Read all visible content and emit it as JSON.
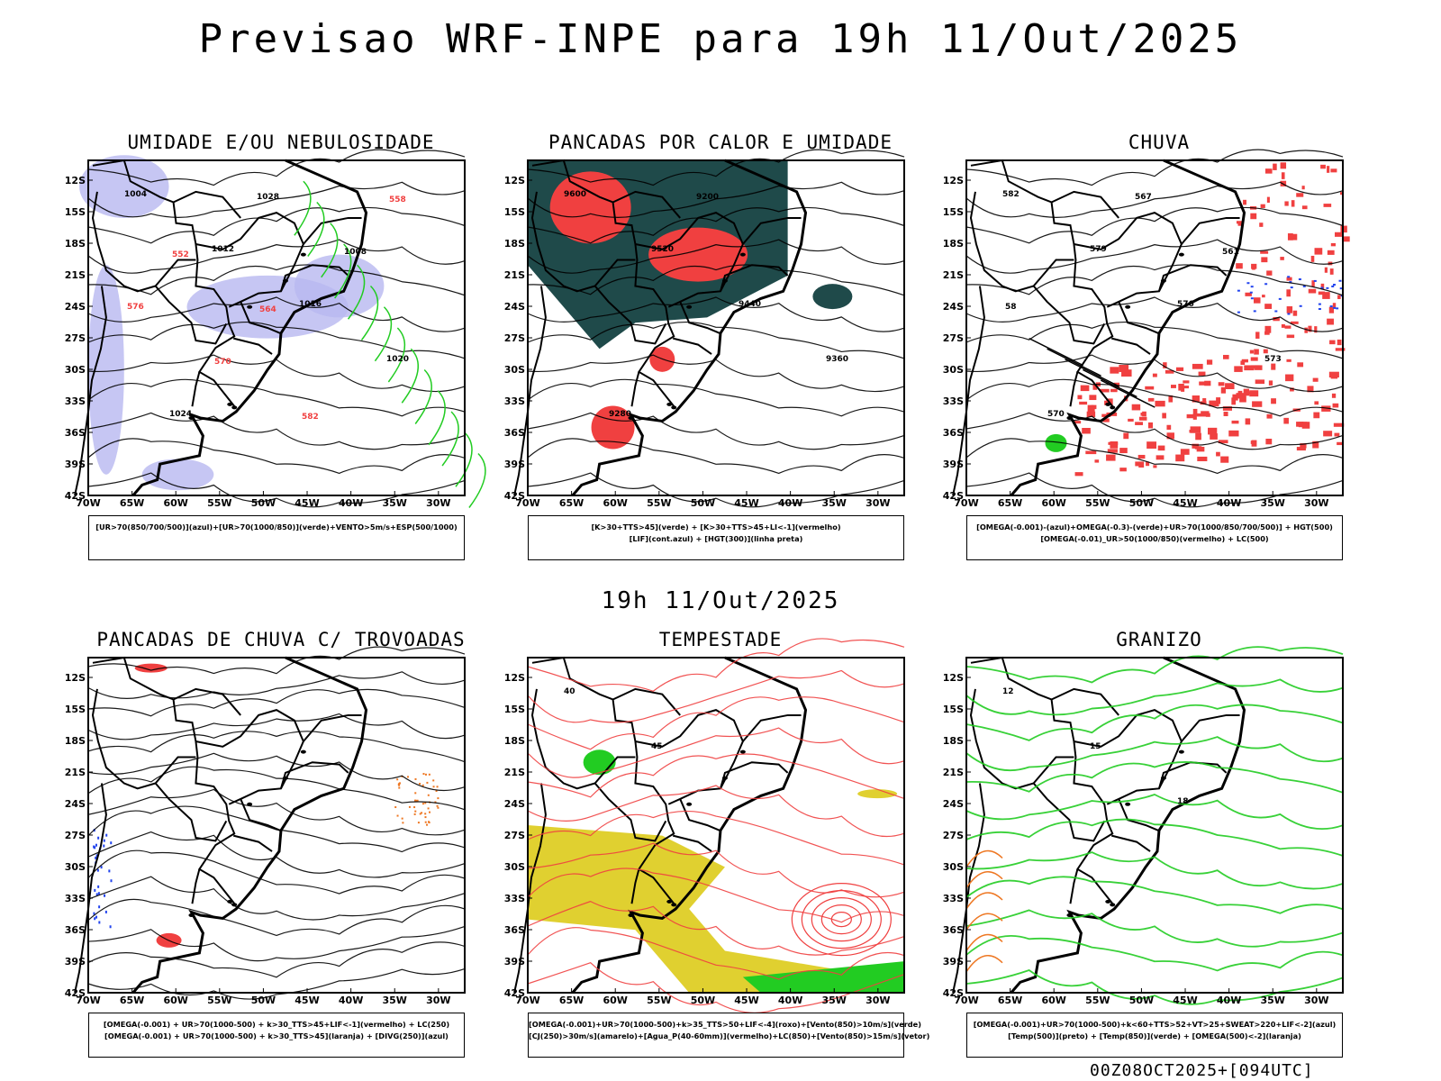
{
  "title": "Previsao WRF-INPE  para 19h 11/Out/2025",
  "subtitle": "19h 11/Out/2025",
  "run_info": "00Z08OCT2025+[094UTC]",
  "lat_labels": [
    "12S",
    "15S",
    "18S",
    "21S",
    "24S",
    "27S",
    "30S",
    "33S",
    "36S",
    "39S",
    "42S"
  ],
  "lon_labels": [
    "70W",
    "65W",
    "60W",
    "55W",
    "50W",
    "45W",
    "40W",
    "35W",
    "30W"
  ],
  "panels": [
    {
      "title": "UMIDADE E/OU NEBULOSIDADE",
      "legend": [
        "[UR>70(850/700/500)](azul)+[UR>70(1000/850)](verde)+VENTO>5m/s+ESP(500/1000)"
      ]
    },
    {
      "title": "PANCADAS POR CALOR E UMIDADE",
      "legend": [
        "[K>30+TTS>45](verde) + [K>30+TTS>45+LI<-1](vermelho)",
        "[LIF](cont.azul) + [HGT(300)](linha preta)"
      ]
    },
    {
      "title": "CHUVA",
      "legend": [
        "[OMEGA(-0.001)-(azul)+OMEGA(-0.3)-(verde)+UR>70(1000/850/700/500)] + HGT(500)",
        "[OMEGA(-0.01)_UR>50(1000/850)(vermelho) + LC(500)"
      ]
    },
    {
      "title": "PANCADAS DE CHUVA C/ TROVOADAS",
      "legend": [
        "[OMEGA(-0.001) + UR>70(1000-500) + k>30_TTS>45+LIF<-1](vermelho) + LC(250)",
        "[OMEGA(-0.001) + UR>70(1000-500) + k>30_TTS>45](laranja) + [DIVG(250)](azul)"
      ]
    },
    {
      "title": "TEMPESTADE",
      "legend": [
        "[OMEGA(-0.001)+UR>70(1000-500)+k>35_TTS>50+LIF<-4](roxo)+[Vento(850)>10m/s](verde)",
        "[CJ(250)>30m/s](amarelo)+[Agua_P(40-60mm)](vermelho)+LC(850)+[Vento(850)>15m/s](vetor)"
      ]
    },
    {
      "title": "GRANIZO",
      "legend": [
        "[OMEGA(-0.001)+UR>70(1000-500)+k<60+TTS>52+VT>25+SWEAT>220+LIF<-2](azul)",
        "[Temp(500)](preto) + [Temp(850)](verde) + [OMEGA(500)<-2](laranja)"
      ]
    }
  ],
  "contour_labels": {
    "p1": [
      "1004",
      "1012",
      "1016",
      "1020",
      "1024",
      "1028",
      "1008",
      "576",
      "570",
      "582",
      "558",
      "552",
      "564"
    ],
    "p2": [
      "9600",
      "9520",
      "9440",
      "9360",
      "9280",
      "9200"
    ],
    "p3": [
      "582",
      "579",
      "576",
      "573",
      "570",
      "567",
      "561",
      "58"
    ],
    "p5": [
      "40",
      "45"
    ],
    "p6": [
      "12",
      "15",
      "18"
    ]
  },
  "colors": {
    "red": "#f04040",
    "green": "#22cc22",
    "blue": "#2244ee",
    "lavender": "#b8b8f0",
    "darkteal": "#1f4a4a",
    "yellow": "#e0d030",
    "orange": "#ee7722",
    "purple": "#9933cc"
  }
}
